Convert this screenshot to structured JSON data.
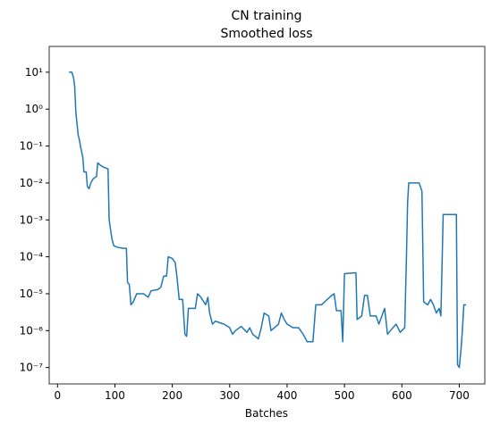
{
  "chart_data": {
    "type": "line",
    "title": "CN training",
    "subtitle": "Smoothed loss",
    "xlabel": "Batches",
    "log_y": true,
    "grid": false,
    "xlim": [
      -14.5,
      744.5
    ],
    "xticks": [
      0,
      100,
      200,
      300,
      400,
      500,
      600,
      700
    ],
    "ylim": [
      3.6e-08,
      50
    ],
    "yticks": [
      {
        "value": 10,
        "label": "10¹"
      },
      {
        "value": 1,
        "label": "10⁰"
      },
      {
        "value": 0.1,
        "label": "10⁻¹"
      },
      {
        "value": 0.01,
        "label": "10⁻²"
      },
      {
        "value": 0.001,
        "label": "10⁻³"
      },
      {
        "value": 0.0001,
        "label": "10⁻⁴"
      },
      {
        "value": 1e-05,
        "label": "10⁻⁵"
      },
      {
        "value": 1e-06,
        "label": "10⁻⁶"
      },
      {
        "value": 1e-07,
        "label": "10⁻⁷"
      }
    ],
    "x": [
      20,
      25,
      28,
      30,
      32,
      34,
      36,
      38,
      40,
      42,
      44,
      46,
      50,
      52,
      55,
      58,
      62,
      68,
      70,
      75,
      80,
      85,
      88,
      90,
      92,
      95,
      98,
      105,
      115,
      120,
      122,
      125,
      128,
      132,
      138,
      150,
      158,
      163,
      175,
      180,
      185,
      190,
      193,
      200,
      205,
      208,
      212,
      218,
      222,
      225,
      228,
      240,
      244,
      250,
      258,
      262,
      265,
      270,
      275,
      290,
      300,
      305,
      310,
      320,
      330,
      335,
      340,
      350,
      355,
      360,
      368,
      372,
      385,
      390,
      395,
      400,
      410,
      420,
      428,
      435,
      445,
      450,
      460,
      470,
      478,
      482,
      486,
      494,
      497,
      500,
      520,
      522,
      530,
      535,
      540,
      545,
      555,
      560,
      570,
      575,
      580,
      590,
      597,
      605,
      608,
      610,
      612,
      630,
      635,
      638,
      645,
      650,
      655,
      660,
      665,
      668,
      672,
      695,
      697,
      700,
      703,
      705,
      708,
      712
    ],
    "series": [
      {
        "name": "Smoothed loss",
        "color": "#1f77b4",
        "values": [
          10,
          10,
          7,
          4,
          0.8,
          0.4,
          0.2,
          0.15,
          0.1,
          0.07,
          0.05,
          0.02,
          0.02,
          0.008,
          0.007,
          0.01,
          0.013,
          0.015,
          0.035,
          0.03,
          0.027,
          0.025,
          0.024,
          0.001,
          0.0006,
          0.0003,
          0.0002,
          0.00018,
          0.00017,
          0.00017,
          2e-05,
          1.8e-05,
          5e-06,
          6e-06,
          1e-05,
          1e-05,
          8e-06,
          1.2e-05,
          1.3e-05,
          1.5e-05,
          3e-05,
          3e-05,
          0.0001,
          9e-05,
          7e-05,
          3e-05,
          7e-06,
          7e-06,
          8e-07,
          7e-07,
          4e-06,
          4e-06,
          1e-05,
          8e-06,
          5e-06,
          8e-06,
          3e-06,
          1.5e-06,
          1.8e-06,
          1.5e-06,
          1.2e-06,
          8e-07,
          1e-06,
          1.3e-06,
          9e-07,
          1.2e-06,
          8e-07,
          6e-07,
          1.2e-06,
          3e-06,
          2.5e-06,
          1e-06,
          1.5e-06,
          3e-06,
          2e-06,
          1.5e-06,
          1.2e-06,
          1.2e-06,
          8e-07,
          5e-07,
          5e-07,
          5e-06,
          5e-06,
          7e-06,
          9e-06,
          1e-05,
          3.5e-06,
          3.5e-06,
          5e-07,
          3.5e-05,
          3.7e-05,
          2e-06,
          2.5e-06,
          9e-06,
          9e-06,
          2.5e-06,
          2.5e-06,
          1.5e-06,
          4e-06,
          8e-07,
          1e-06,
          1.5e-06,
          9e-07,
          1.2e-06,
          0.0001,
          0.003,
          0.01,
          0.01,
          0.006,
          6e-06,
          5e-06,
          7e-06,
          5e-06,
          3e-06,
          4e-06,
          2.5e-06,
          0.0014,
          0.0014,
          1.2e-07,
          1e-07,
          3e-07,
          8e-07,
          5e-06,
          5e-06
        ]
      }
    ]
  }
}
